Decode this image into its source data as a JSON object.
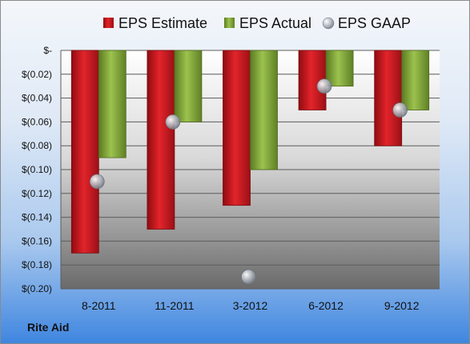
{
  "company": "Rite Aid",
  "colors": {
    "estimate": "#c8141b",
    "actual": "#7fa33a",
    "gaap": "#a7adb6"
  },
  "chart_data": {
    "type": "bar",
    "categories": [
      "8-2011",
      "11-2011",
      "3-2012",
      "6-2012",
      "9-2012"
    ],
    "series": [
      {
        "name": "EPS Estimate",
        "values": [
          -0.17,
          -0.15,
          -0.13,
          -0.05,
          -0.08
        ]
      },
      {
        "name": "EPS Actual",
        "values": [
          -0.09,
          -0.06,
          -0.1,
          -0.03,
          -0.05
        ]
      },
      {
        "name": "EPS GAAP",
        "type": "scatter",
        "values": [
          -0.11,
          -0.06,
          -0.19,
          -0.03,
          -0.05
        ]
      }
    ],
    "ylim": [
      -0.2,
      0
    ],
    "yticks": [
      {
        "value": 0,
        "label": "$-"
      },
      {
        "value": -0.02,
        "label": "$(0.02)"
      },
      {
        "value": -0.04,
        "label": "$(0.04)"
      },
      {
        "value": -0.06,
        "label": "$(0.06)"
      },
      {
        "value": -0.08,
        "label": "$(0.08)"
      },
      {
        "value": -0.1,
        "label": "$(0.10)"
      },
      {
        "value": -0.12,
        "label": "$(0.12)"
      },
      {
        "value": -0.14,
        "label": "$(0.14)"
      },
      {
        "value": -0.16,
        "label": "$(0.16)"
      },
      {
        "value": -0.18,
        "label": "$(0.18)"
      },
      {
        "value": -0.2,
        "label": "$(0.20)"
      }
    ],
    "grid": true,
    "legend": "top"
  }
}
